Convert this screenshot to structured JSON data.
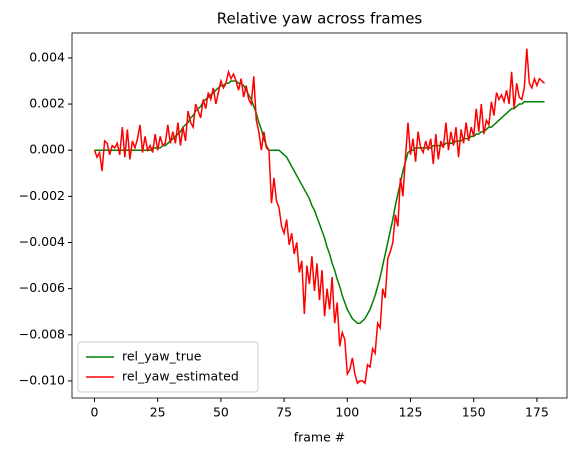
{
  "chart_data": {
    "type": "line",
    "title": "Relative yaw across frames",
    "x_label": "frame #",
    "x": [
      0,
      1,
      2,
      3,
      4,
      5,
      6,
      7,
      8,
      9,
      10,
      11,
      12,
      13,
      14,
      15,
      16,
      17,
      18,
      19,
      20,
      21,
      22,
      23,
      24,
      25,
      26,
      27,
      28,
      29,
      30,
      31,
      32,
      33,
      34,
      35,
      36,
      37,
      38,
      39,
      40,
      41,
      42,
      43,
      44,
      45,
      46,
      47,
      48,
      49,
      50,
      51,
      52,
      53,
      54,
      55,
      56,
      57,
      58,
      59,
      60,
      61,
      62,
      63,
      64,
      65,
      66,
      67,
      68,
      69,
      70,
      71,
      72,
      73,
      74,
      75,
      76,
      77,
      78,
      79,
      80,
      81,
      82,
      83,
      84,
      85,
      86,
      87,
      88,
      89,
      90,
      91,
      92,
      93,
      94,
      95,
      96,
      97,
      98,
      99,
      100,
      101,
      102,
      103,
      104,
      105,
      106,
      107,
      108,
      109,
      110,
      111,
      112,
      113,
      114,
      115,
      116,
      117,
      118,
      119,
      120,
      121,
      122,
      123,
      124,
      125,
      126,
      127,
      128,
      129,
      130,
      131,
      132,
      133,
      134,
      135,
      136,
      137,
      138,
      139,
      140,
      141,
      142,
      143,
      144,
      145,
      146,
      147,
      148,
      149,
      150,
      151,
      152,
      153,
      154,
      155,
      156,
      157,
      158,
      159,
      160,
      161,
      162,
      163,
      164,
      165,
      166,
      167,
      168,
      169,
      170,
      171,
      172,
      173,
      174,
      175,
      176,
      177,
      178
    ],
    "series": [
      {
        "name": "rel_yaw_true",
        "color": "#008000",
        "values": [
          0,
          0,
          0,
          0,
          0,
          0,
          0,
          0,
          0,
          0,
          0,
          0,
          0,
          0,
          0,
          0,
          0,
          0,
          0,
          0,
          0,
          0,
          0,
          0.0001,
          0.0001,
          0.0001,
          0.0001,
          0.0002,
          0.0002,
          0.0003,
          0.0004,
          0.0005,
          0.0006,
          0.0007,
          0.0008,
          0.001,
          0.0011,
          0.0012,
          0.0014,
          0.0015,
          0.0017,
          0.0018,
          0.0019,
          0.0021,
          0.0022,
          0.0023,
          0.0024,
          0.0025,
          0.0026,
          0.0027,
          0.0028,
          0.0028,
          0.0029,
          0.0029,
          0.003,
          0.003,
          0.003,
          0.0029,
          0.0029,
          0.0028,
          0.0026,
          0.0024,
          0.0022,
          0.0019,
          0.0016,
          0.0012,
          0.0009,
          0.0005,
          0.0002,
          0,
          0,
          0,
          0,
          0,
          -0.0001,
          -0.0002,
          -0.0003,
          -0.0005,
          -0.0007,
          -0.0009,
          -0.0011,
          -0.0013,
          -0.0015,
          -0.0017,
          -0.0019,
          -0.0021,
          -0.0024,
          -0.0026,
          -0.0029,
          -0.0032,
          -0.0035,
          -0.0038,
          -0.0042,
          -0.0045,
          -0.0049,
          -0.0052,
          -0.0056,
          -0.0059,
          -0.0063,
          -0.0066,
          -0.0069,
          -0.0071,
          -0.0073,
          -0.0074,
          -0.0075,
          -0.0075,
          -0.0074,
          -0.0073,
          -0.0071,
          -0.0069,
          -0.0066,
          -0.0063,
          -0.0059,
          -0.0055,
          -0.005,
          -0.0045,
          -0.004,
          -0.0035,
          -0.003,
          -0.0024,
          -0.0019,
          -0.0014,
          -0.0009,
          -0.0005,
          -0.0001,
          0,
          0,
          0.0001,
          0.0001,
          0.0001,
          0.0001,
          0.0001,
          0.0001,
          0.0001,
          0.0002,
          0.0002,
          0.0002,
          0.0002,
          0.0002,
          0.0003,
          0.0003,
          0.0003,
          0.0003,
          0.0004,
          0.0004,
          0.0004,
          0.0005,
          0.0005,
          0.0005,
          0.0006,
          0.0006,
          0.0007,
          0.0007,
          0.0008,
          0.0008,
          0.0009,
          0.001,
          0.001,
          0.0011,
          0.0012,
          0.0013,
          0.0014,
          0.0015,
          0.0016,
          0.0017,
          0.0018,
          0.0018,
          0.0019,
          0.002,
          0.002,
          0.0021,
          0.0021,
          0.0021,
          0.0021,
          0.0021,
          0.0021,
          0.0021,
          0.0021,
          0.0021
        ]
      },
      {
        "name": "rel_yaw_estimated",
        "color": "#ff0000",
        "values": [
          0,
          -0.0003,
          -0.0001,
          -0.0009,
          0.0004,
          0.0003,
          -0.0002,
          0.0002,
          0.0001,
          0.0003,
          -0.0002,
          0.001,
          -0.0003,
          0.0009,
          -0.0004,
          0.0004,
          0.0001,
          0.0005,
          0.0011,
          -0.0001,
          0.0006,
          0,
          0.0002,
          -0.0001,
          0.0007,
          0,
          0.0006,
          0.0002,
          0.0003,
          0.0011,
          0.0003,
          0.0008,
          0.0003,
          0.0012,
          0.0002,
          0.001,
          0.0004,
          0.0017,
          0.0012,
          0.001,
          0.002,
          0.0017,
          0.0014,
          0.0022,
          0.0018,
          0.0025,
          0.0022,
          0.0027,
          0.002,
          0.0025,
          0.003,
          0.0027,
          0.0029,
          0.0034,
          0.0031,
          0.0033,
          0.003,
          0.0026,
          0.0031,
          0.0023,
          0.0028,
          0.0022,
          0.002,
          0.0032,
          0.0013,
          0.0008,
          0,
          0.0008,
          0.0001,
          0,
          -0.0023,
          -0.0012,
          -0.0022,
          -0.0025,
          -0.0033,
          -0.0036,
          -0.003,
          -0.0041,
          -0.0036,
          -0.0045,
          -0.004,
          -0.0053,
          -0.0048,
          -0.0071,
          -0.005,
          -0.0058,
          -0.0046,
          -0.0061,
          -0.0049,
          -0.0065,
          -0.0052,
          -0.0072,
          -0.006,
          -0.0069,
          -0.0055,
          -0.0075,
          -0.0066,
          -0.0085,
          -0.0079,
          -0.0082,
          -0.0097,
          -0.0095,
          -0.009,
          -0.0097,
          -0.0101,
          -0.01,
          -0.01,
          -0.0101,
          -0.0093,
          -0.0094,
          -0.0086,
          -0.0088,
          -0.0075,
          -0.0077,
          -0.006,
          -0.0064,
          -0.0047,
          -0.0044,
          -0.004,
          -0.0028,
          -0.0033,
          -0.0012,
          -0.002,
          -0.0003,
          0.0012,
          -0.0002,
          0.0005,
          -0.0005,
          0.0008,
          0.0001,
          -0.0001,
          0.0004,
          0,
          0.0005,
          -0.0006,
          0.0007,
          -0.0004,
          0.0004,
          0.0001,
          0.0012,
          0,
          0.0008,
          0.0002,
          0.001,
          -0.0003,
          0.0009,
          0.0003,
          0.0012,
          0.0004,
          0.001,
          0.0006,
          0.0018,
          0.0008,
          0.002,
          0.0007,
          0.0013,
          0.0011,
          0.0021,
          0.0015,
          0.0025,
          0.0022,
          0.0024,
          0.0021,
          0.0026,
          0.002,
          0.0034,
          0.0018,
          0.0029,
          0.0023,
          0.0022,
          0.0027,
          0.0044,
          0.0029,
          0.0027,
          0.0031,
          0.0028,
          0.0031,
          0.003,
          0.0029
        ]
      }
    ],
    "xlim": [
      -8.9,
      186.9
    ],
    "xticks": [
      0,
      25,
      50,
      75,
      100,
      125,
      150,
      175
    ],
    "ylim": [
      -0.01074,
      0.00508
    ],
    "yticks": [
      {
        "value": -0.01,
        "label": "−0.010"
      },
      {
        "value": -0.008,
        "label": "−0.008"
      },
      {
        "value": -0.006,
        "label": "−0.006"
      },
      {
        "value": -0.004,
        "label": "−0.004"
      },
      {
        "value": -0.002,
        "label": "−0.002"
      },
      {
        "value": 0,
        "label": "0.000"
      },
      0.002,
      0.004
    ],
    "legend": "lower left",
    "grid": false
  }
}
